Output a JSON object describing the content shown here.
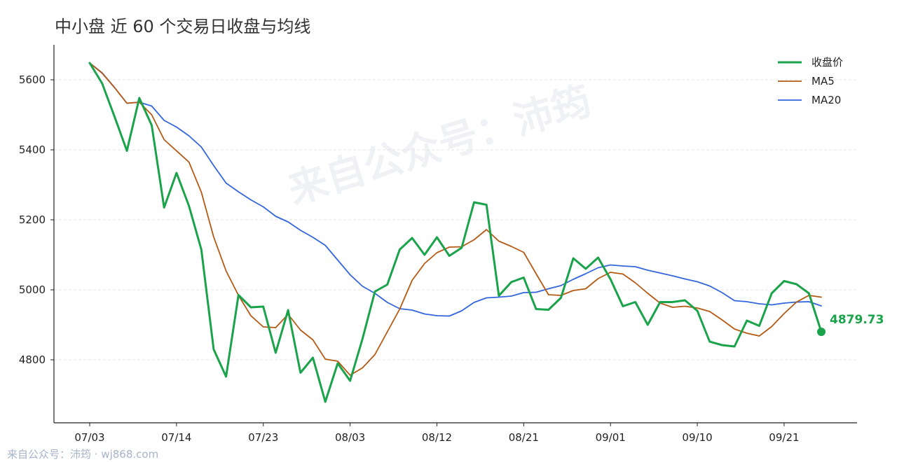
{
  "title": "中小盘 近 60 个交易日收盘与均线",
  "watermark": "来自公众号：沛筠",
  "footer": "来自公众号：沛筠 · wj868.com",
  "last_value_label": "4879.73",
  "colors": {
    "close": "#1aa34a",
    "ma5": "#b55a14",
    "ma20": "#3366dd",
    "grid": "#e4e4e4",
    "axis": "#222222"
  },
  "chart_data": {
    "type": "line",
    "ylim": [
      4620,
      5700
    ],
    "yticks": [
      4800,
      5000,
      5200,
      5400,
      5600
    ],
    "xtick_labels": [
      {
        "index": 0,
        "label": "07/03"
      },
      {
        "index": 7,
        "label": "07/14"
      },
      {
        "index": 14,
        "label": "07/23"
      },
      {
        "index": 21,
        "label": "08/03"
      },
      {
        "index": 28,
        "label": "08/12"
      },
      {
        "index": 35,
        "label": "08/21"
      },
      {
        "index": 42,
        "label": "09/01"
      },
      {
        "index": 49,
        "label": "09/10"
      },
      {
        "index": 56,
        "label": "09/21"
      }
    ],
    "legend_position": "top-right",
    "series": [
      {
        "name": "收盘价",
        "key": "close",
        "values": [
          5648,
          5590,
          5495,
          5397,
          5548,
          5470,
          5235,
          5334,
          5240,
          5115,
          4830,
          4752,
          4985,
          4950,
          4952,
          4820,
          4942,
          4763,
          4806,
          4680,
          4790,
          4740,
          4860,
          4995,
          5015,
          5115,
          5148,
          5100,
          5150,
          5097,
          5120,
          5250,
          5243,
          4983,
          5022,
          5035,
          4945,
          4943,
          4977,
          5090,
          5060,
          5092,
          5030,
          4953,
          4965,
          4900,
          4965,
          4965,
          4970,
          4940,
          4852,
          4842,
          4838,
          4912,
          4897,
          4990,
          5025,
          5016,
          4990,
          4880
        ]
      },
      {
        "name": "MA5",
        "key": "ma5",
        "values": [
          5648,
          5619,
          5578,
          5533,
          5536,
          5500,
          5429,
          5397,
          5365,
          5279,
          5151,
          5054,
          4984,
          4926,
          4894,
          4892,
          4930,
          4885,
          4857,
          4802,
          4796,
          4756,
          4777,
          4815,
          4880,
          4945,
          5027,
          5075,
          5106,
          5122,
          5123,
          5143,
          5172,
          5139,
          5124,
          5107,
          5046,
          4986,
          4984,
          4998,
          5003,
          5032,
          5050,
          5045,
          5020,
          4990,
          4962,
          4950,
          4953,
          4948,
          4938,
          4914,
          4888,
          4876,
          4868,
          4895,
          4932,
          4965,
          4984,
          4979
        ]
      },
      {
        "name": "MA20",
        "key": "ma20",
        "values": [
          5648,
          5620,
          5578,
          5533,
          5536,
          5525,
          5484,
          5465,
          5440,
          5408,
          5355,
          5305,
          5280,
          5257,
          5237,
          5210,
          5194,
          5170,
          5150,
          5127,
          5085,
          5043,
          5010,
          4990,
          4964,
          4946,
          4942,
          4931,
          4926,
          4925,
          4940,
          4964,
          4977,
          4979,
          4982,
          4992,
          4993,
          5003,
          5012,
          5030,
          5046,
          5063,
          5071,
          5068,
          5066,
          5056,
          5048,
          5040,
          5031,
          5023,
          5011,
          4992,
          4969,
          4966,
          4960,
          4957,
          4962,
          4965,
          4966,
          4954
        ]
      }
    ]
  }
}
